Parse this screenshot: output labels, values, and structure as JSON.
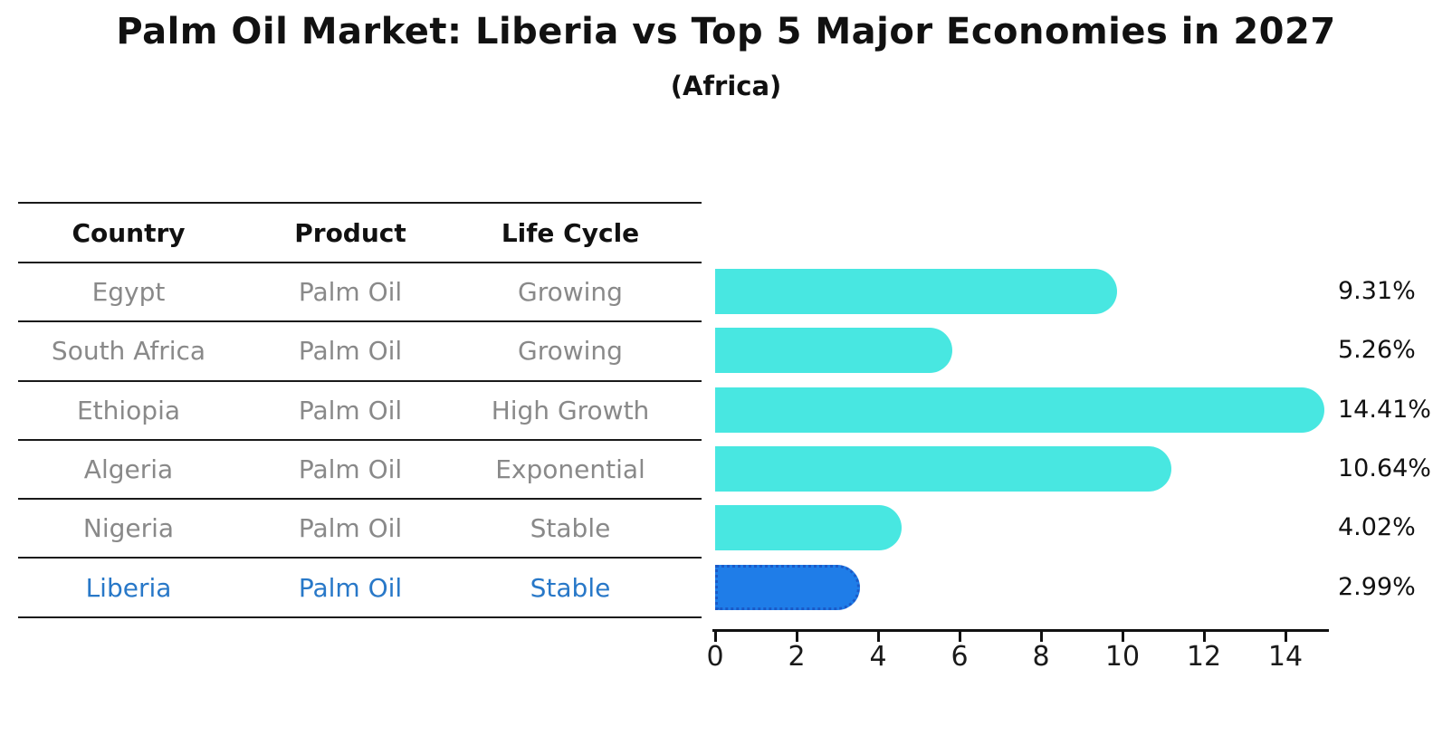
{
  "title": "Palm Oil Market: Liberia vs Top 5 Major Economies in 2027",
  "subtitle": "(Africa)",
  "table": {
    "headers": [
      "Country",
      "Product",
      "Life Cycle"
    ],
    "rows": [
      {
        "country": "Egypt",
        "product": "Palm Oil",
        "life_cycle": "Growing",
        "highlighted": false
      },
      {
        "country": "South Africa",
        "product": "Palm Oil",
        "life_cycle": "Growing",
        "highlighted": false
      },
      {
        "country": "Ethiopia",
        "product": "Palm Oil",
        "life_cycle": "High Growth",
        "highlighted": false
      },
      {
        "country": "Algeria",
        "product": "Palm Oil",
        "life_cycle": "Exponential",
        "highlighted": false
      },
      {
        "country": "Nigeria",
        "product": "Palm Oil",
        "life_cycle": "Stable",
        "highlighted": false
      },
      {
        "country": "Liberia",
        "product": "Palm Oil",
        "life_cycle": "Stable",
        "highlighted": true
      }
    ]
  },
  "chart_data": {
    "type": "bar",
    "orientation": "horizontal",
    "title": "Palm Oil Market: Liberia vs Top 5 Major Economies in 2027",
    "subtitle": "(Africa)",
    "categories": [
      "Egypt",
      "South Africa",
      "Ethiopia",
      "Algeria",
      "Nigeria",
      "Liberia"
    ],
    "values": [
      9.31,
      5.26,
      14.41,
      10.64,
      4.02,
      2.99
    ],
    "value_labels": [
      "9.31%",
      "5.26%",
      "14.41%",
      "10.64%",
      "4.02%",
      "2.99%"
    ],
    "highlight_index": 5,
    "x_ticks": [
      0,
      2,
      4,
      6,
      8,
      10,
      12,
      14
    ],
    "xlim": [
      0,
      15.1
    ],
    "grid": false,
    "legend": false,
    "colors": {
      "bar": "#48E7E1",
      "highlight_bar": "#1F7DE8",
      "highlight_bar_border": "#1B5AC8",
      "highlight_text": "#2878C8",
      "table_text": "#898989",
      "header_text": "#111111",
      "axis": "#111111"
    }
  }
}
